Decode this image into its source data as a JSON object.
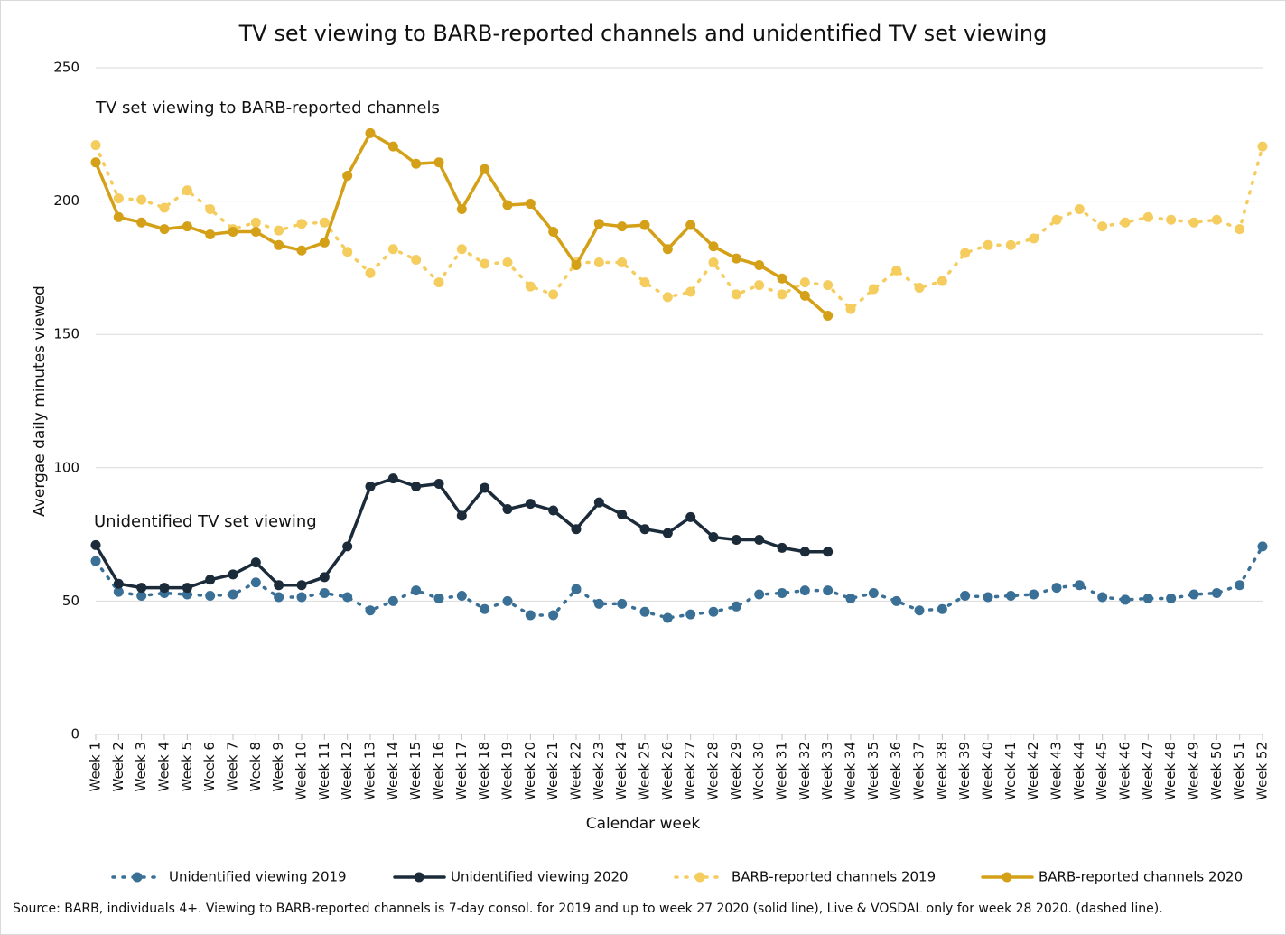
{
  "chart_data": {
    "type": "line",
    "title": "TV set viewing to BARB-reported channels and unidentified TV set viewing",
    "x_label": "Calendar week",
    "y_label": "Avergae daily minutes viewed",
    "annotations": [
      "TV set viewing to BARB-reported channels",
      "Unidentified TV set viewing"
    ],
    "source": "Source: BARB, individuals 4+. Viewing to BARB-reported channels is 7-day consol. for 2019 and up to week 27 2020 (solid line), Live & VOSDAL only for week 28 2020. (dashed line).",
    "categories": [
      "Week 1",
      "Week 2",
      "Week 3",
      "Week 4",
      "Week 5",
      "Week 6",
      "Week 7",
      "Week 8",
      "Week 9",
      "Week 10",
      "Week 11",
      "Week 12",
      "Week 13",
      "Week 14",
      "Week 15",
      "Week 16",
      "Week 17",
      "Week 18",
      "Week 19",
      "Week 20",
      "Week 21",
      "Week 22",
      "Week 23",
      "Week 24",
      "Week 25",
      "Week 26",
      "Week 27",
      "Week 28",
      "Week 29",
      "Week 30",
      "Week 31",
      "Week 32",
      "Week 33",
      "Week 34",
      "Week 35",
      "Week 36",
      "Week 37",
      "Week 38",
      "Week 39",
      "Week 40",
      "Week 41",
      "Week 42",
      "Week 43",
      "Week 44",
      "Week 45",
      "Week 46",
      "Week 47",
      "Week 48",
      "Week 49",
      "Week 50",
      "Week 51",
      "Week 52"
    ],
    "ylim": [
      0,
      250
    ],
    "yticks": [
      0,
      50,
      100,
      150,
      200,
      250
    ],
    "grid": true,
    "legend": "bottom",
    "series": [
      {
        "name": "Unidentified viewing 2019",
        "color": "#3a6f96",
        "style": "dotted",
        "values": [
          65,
          53.5,
          52,
          53,
          52.5,
          52,
          52.5,
          57,
          51.5,
          51.5,
          53,
          51.5,
          46.5,
          50,
          54,
          51,
          52,
          47,
          50,
          44.7,
          44.7,
          54.5,
          49,
          49,
          46,
          43.7,
          45,
          46,
          48,
          52.5,
          53,
          54,
          54,
          51,
          53,
          50,
          46.5,
          47,
          52,
          51.5,
          52,
          52.5,
          55,
          56,
          51.5,
          50.5,
          51,
          51,
          52.5,
          53,
          56,
          70.5
        ]
      },
      {
        "name": "Unidentified viewing 2020",
        "color": "#1b2b3a",
        "style": "solid",
        "values": [
          71,
          56.5,
          55,
          55,
          55,
          58,
          60,
          64.5,
          56,
          56,
          59,
          70.5,
          93,
          96,
          93,
          94,
          82,
          92.5,
          84.5,
          86.5,
          84,
          77,
          87,
          82.5,
          77,
          75.5,
          81.5,
          74,
          73,
          73,
          70,
          68.5,
          68.5,
          null,
          null,
          null,
          null,
          null,
          null,
          null,
          null,
          null,
          null,
          null,
          null,
          null,
          null,
          null,
          null,
          null,
          null,
          null
        ]
      },
      {
        "name": "BARB-reported channels 2019",
        "color": "#f5cc5e",
        "style": "dotted",
        "values": [
          221,
          201,
          200.5,
          197.5,
          204,
          197,
          189.5,
          192,
          189,
          191.5,
          192,
          181,
          173,
          182,
          178,
          169.5,
          182,
          176.5,
          177,
          168,
          165,
          177,
          177,
          177,
          169.5,
          164,
          166,
          177,
          165,
          168.5,
          165,
          169.5,
          168.5,
          159.5,
          167,
          174,
          167.5,
          170,
          180.5,
          183.5,
          183.5,
          186,
          193,
          197,
          190.5,
          192,
          194,
          193,
          192,
          193,
          189.5,
          220.5
        ]
      },
      {
        "name": "BARB-reported channels 2020",
        "color": "#d4a017",
        "style": "solid",
        "values": [
          214.5,
          194,
          192,
          189.5,
          190.5,
          187.5,
          188.5,
          188.5,
          183.5,
          181.5,
          184.5,
          209.5,
          225.5,
          220.5,
          214,
          214.5,
          197,
          212,
          198.5,
          199,
          188.5,
          176,
          191.5,
          190.5,
          191,
          182,
          191,
          183,
          178.5,
          176,
          171,
          164.5,
          157,
          null,
          null,
          null,
          null,
          null,
          null,
          null,
          null,
          null,
          null,
          null,
          null,
          null,
          null,
          null,
          null,
          null,
          null,
          null
        ]
      }
    ]
  }
}
